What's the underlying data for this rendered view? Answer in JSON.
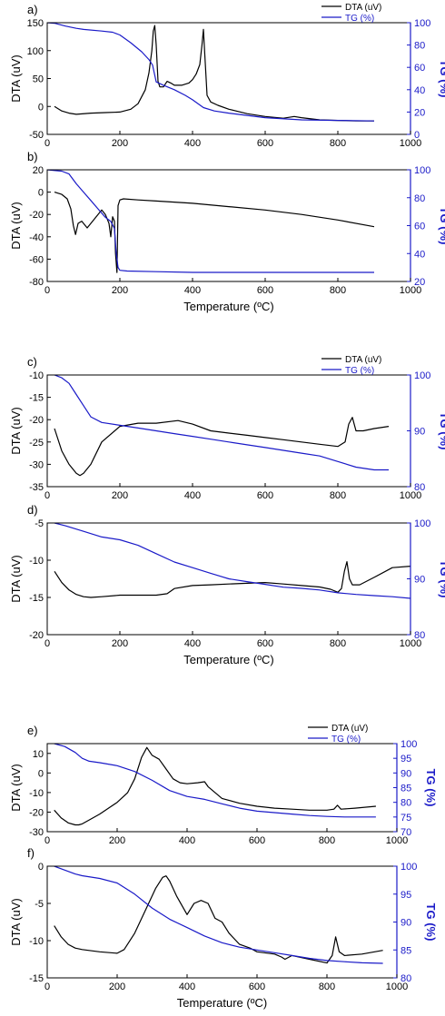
{
  "colors": {
    "dta": "#000000",
    "tg": "#1a1ac8"
  },
  "chart_data": [
    {
      "type": "line",
      "letter": "a)",
      "has_xlabel": false,
      "xlabel": "",
      "ylabel": "DTA (uV)",
      "y2label": "TG (%)",
      "xlim": [
        0,
        1000
      ],
      "ylim": [
        -50,
        150
      ],
      "y2lim": [
        0,
        100
      ],
      "xticks": [
        "0",
        "200",
        "400",
        "600",
        "800",
        "1000"
      ],
      "yticks": [
        "-50",
        "0",
        "50",
        "100",
        "150"
      ],
      "y2ticks": [
        "0",
        "20",
        "40",
        "60",
        "80",
        "100"
      ],
      "legend": [
        "DTA (uV)",
        "TG (%)"
      ],
      "series": [
        {
          "name": "DTA (uV)",
          "axis": "left",
          "x": [
            20,
            40,
            60,
            80,
            120,
            160,
            200,
            230,
            250,
            270,
            280,
            288,
            292,
            296,
            300,
            305,
            310,
            320,
            330,
            340,
            350,
            370,
            390,
            400,
            410,
            420,
            426,
            430,
            434,
            440,
            450,
            470,
            500,
            550,
            600,
            650,
            680,
            700,
            750,
            800,
            850,
            900
          ],
          "y": [
            0,
            -8,
            -12,
            -14,
            -12,
            -11,
            -10,
            -5,
            5,
            30,
            60,
            100,
            135,
            145,
            110,
            45,
            35,
            35,
            45,
            42,
            38,
            38,
            42,
            48,
            58,
            75,
            110,
            138,
            90,
            20,
            8,
            2,
            -5,
            -13,
            -18,
            -21,
            -18,
            -20,
            -24,
            -25,
            -26,
            -26
          ]
        },
        {
          "name": "TG (%)",
          "axis": "right",
          "x": [
            0,
            20,
            50,
            80,
            100,
            150,
            180,
            200,
            230,
            260,
            280,
            290,
            300,
            320,
            350,
            380,
            400,
            430,
            460,
            500,
            550,
            600,
            700,
            800,
            900
          ],
          "y": [
            100,
            99.5,
            97,
            95,
            94,
            92.5,
            91.5,
            89,
            82,
            74,
            67,
            62,
            47,
            44,
            40,
            35,
            31,
            24,
            21,
            19,
            17,
            15,
            13,
            12.5,
            12
          ]
        }
      ]
    },
    {
      "type": "line",
      "letter": "b)",
      "has_xlabel": true,
      "xlabel": "Temperature (ºC)",
      "ylabel": "DTA (uV)",
      "y2label": "TG (%)",
      "xlim": [
        0,
        1000
      ],
      "ylim": [
        -80,
        20
      ],
      "y2lim": [
        20,
        100
      ],
      "xticks": [
        "0",
        "200",
        "400",
        "600",
        "800",
        "1000"
      ],
      "yticks": [
        "-80",
        "-60",
        "-40",
        "-20",
        "0",
        "20"
      ],
      "y2ticks": [
        "20",
        "40",
        "60",
        "80",
        "100"
      ],
      "legend": [],
      "series": [
        {
          "name": "DTA (uV)",
          "axis": "left",
          "x": [
            20,
            40,
            55,
            65,
            72,
            78,
            85,
            95,
            110,
            130,
            150,
            160,
            170,
            175,
            180,
            185,
            188,
            192,
            195,
            200,
            210,
            250,
            300,
            400,
            500,
            600,
            700,
            800,
            900
          ],
          "y": [
            0,
            -2,
            -6,
            -15,
            -30,
            -38,
            -28,
            -26,
            -32,
            -24,
            -16,
            -20,
            -28,
            -40,
            -22,
            -26,
            -55,
            -72,
            -12,
            -7,
            -6,
            -7,
            -8,
            -10,
            -13,
            -16,
            -20,
            -25,
            -31
          ]
        },
        {
          "name": "TG (%)",
          "axis": "right",
          "x": [
            0,
            20,
            40,
            60,
            80,
            100,
            120,
            140,
            160,
            175,
            185,
            190,
            195,
            200,
            220,
            300,
            400,
            500,
            600,
            700,
            800,
            900
          ],
          "y": [
            100,
            99.5,
            99,
            97,
            90,
            84,
            78,
            72,
            66,
            63,
            58,
            40,
            30,
            28,
            27.5,
            27,
            26.5,
            26.5,
            26.5,
            26.5,
            26.5,
            26.5
          ]
        }
      ]
    },
    {
      "type": "line",
      "letter": "c)",
      "has_xlabel": false,
      "xlabel": "",
      "ylabel": "DTA (uV)",
      "y2label": "TG (%)",
      "xlim": [
        0,
        1000
      ],
      "ylim": [
        -35,
        -10
      ],
      "y2lim": [
        80,
        100
      ],
      "xticks": [
        "0",
        "200",
        "400",
        "600",
        "800",
        "1000"
      ],
      "yticks": [
        "-35",
        "-30",
        "-25",
        "-20",
        "-15",
        "-10"
      ],
      "y2ticks": [
        "80",
        "90",
        "100"
      ],
      "legend": [
        "DTA (uV)",
        "TG (%)"
      ],
      "series": [
        {
          "name": "DTA (uV)",
          "axis": "left",
          "x": [
            20,
            40,
            60,
            80,
            90,
            100,
            120,
            150,
            200,
            250,
            300,
            360,
            400,
            450,
            500,
            550,
            600,
            650,
            700,
            750,
            800,
            820,
            830,
            840,
            850,
            870,
            900,
            940
          ],
          "y": [
            -22,
            -27,
            -30,
            -32,
            -32.5,
            -32,
            -30,
            -25,
            -21.5,
            -20.8,
            -20.8,
            -20.2,
            -21,
            -22.5,
            -23,
            -23.5,
            -24,
            -24.5,
            -25,
            -25.5,
            -26,
            -25,
            -21,
            -19.5,
            -22.5,
            -22.5,
            -22,
            -21.5
          ]
        },
        {
          "name": "TG (%)",
          "axis": "right",
          "x": [
            20,
            40,
            60,
            80,
            100,
            120,
            150,
            200,
            250,
            300,
            350,
            400,
            450,
            500,
            550,
            600,
            650,
            700,
            750,
            800,
            850,
            900,
            940
          ],
          "y": [
            100,
            99.5,
            98.5,
            96.5,
            94.5,
            92.5,
            91.5,
            91,
            90.5,
            90,
            89.5,
            89,
            88.5,
            88,
            87.5,
            87,
            86.5,
            86,
            85.5,
            84.5,
            83.5,
            83,
            83
          ]
        }
      ]
    },
    {
      "type": "line",
      "letter": "d)",
      "has_xlabel": true,
      "xlabel": "Temperature (ºC)",
      "ylabel": "DTA (uV)",
      "y2label": "TG (%)",
      "xlim": [
        0,
        1000
      ],
      "ylim": [
        -20,
        -5
      ],
      "y2lim": [
        80,
        100
      ],
      "xticks": [
        "0",
        "200",
        "400",
        "600",
        "800",
        "1000"
      ],
      "yticks": [
        "-20",
        "-15",
        "-10",
        "-5"
      ],
      "y2ticks": [
        "80",
        "90",
        "100"
      ],
      "legend": [],
      "series": [
        {
          "name": "DTA (uV)",
          "axis": "left",
          "x": [
            20,
            40,
            60,
            80,
            100,
            120,
            150,
            200,
            250,
            300,
            330,
            350,
            400,
            450,
            500,
            550,
            600,
            650,
            700,
            750,
            780,
            800,
            810,
            818,
            825,
            832,
            840,
            860,
            900,
            950,
            1000
          ],
          "y": [
            -11.5,
            -13,
            -14,
            -14.6,
            -14.9,
            -15,
            -14.9,
            -14.7,
            -14.7,
            -14.7,
            -14.5,
            -13.8,
            -13.4,
            -13.3,
            -13.2,
            -13.1,
            -13,
            -13.2,
            -13.4,
            -13.6,
            -13.9,
            -14.3,
            -13.8,
            -11.5,
            -10.2,
            -12.5,
            -13.3,
            -13.3,
            -12.3,
            -11,
            -10.8
          ]
        },
        {
          "name": "TG (%)",
          "axis": "right",
          "x": [
            20,
            50,
            100,
            150,
            200,
            250,
            300,
            350,
            400,
            450,
            500,
            550,
            600,
            650,
            700,
            750,
            800,
            850,
            900,
            950,
            1000
          ],
          "y": [
            100,
            99.5,
            98.5,
            97.5,
            97,
            96,
            94.5,
            93,
            92,
            91,
            90,
            89.5,
            89,
            88.5,
            88.3,
            88,
            87.5,
            87.2,
            87,
            86.8,
            86.5
          ]
        }
      ]
    },
    {
      "type": "line",
      "letter": "e)",
      "has_xlabel": false,
      "xlabel": "",
      "ylabel": "DTA (uV)",
      "y2label": "TG (%)",
      "xlim": [
        0,
        1000
      ],
      "ylim": [
        -30,
        15
      ],
      "y2lim": [
        70,
        100
      ],
      "xticks": [
        "0",
        "200",
        "400",
        "600",
        "800",
        "1000"
      ],
      "yticks": [
        "-30",
        "-20",
        "-10",
        "0",
        "10"
      ],
      "y2ticks": [
        "70",
        "75",
        "80",
        "85",
        "90",
        "95",
        "100"
      ],
      "legend": [
        "DTA (uV)",
        "TG (%)"
      ],
      "series": [
        {
          "name": "DTA (uV)",
          "axis": "left",
          "x": [
            20,
            40,
            60,
            80,
            90,
            100,
            120,
            150,
            200,
            230,
            250,
            270,
            285,
            300,
            320,
            340,
            360,
            380,
            400,
            430,
            450,
            460,
            480,
            500,
            550,
            600,
            650,
            700,
            750,
            800,
            820,
            830,
            840,
            880,
            940
          ],
          "y": [
            -19,
            -23,
            -25.5,
            -26.5,
            -26.5,
            -26,
            -24,
            -21,
            -15,
            -10,
            -3,
            8,
            13,
            9,
            7,
            2,
            -3,
            -5,
            -5.5,
            -5,
            -4.5,
            -7,
            -10,
            -13,
            -15.5,
            -17,
            -18,
            -18.5,
            -19,
            -19,
            -18.5,
            -16.5,
            -18.5,
            -18,
            -17
          ]
        },
        {
          "name": "TG (%)",
          "axis": "right",
          "x": [
            20,
            50,
            80,
            100,
            120,
            150,
            200,
            250,
            300,
            350,
            400,
            450,
            500,
            550,
            600,
            650,
            700,
            750,
            800,
            850,
            900,
            940
          ],
          "y": [
            100,
            99,
            97,
            95,
            94,
            93.5,
            92.5,
            90.5,
            87.5,
            84,
            82,
            81,
            79.5,
            78,
            77,
            76.5,
            76,
            75.5,
            75.2,
            75,
            75,
            75
          ]
        }
      ]
    },
    {
      "type": "line",
      "letter": "f)",
      "has_xlabel": true,
      "xlabel": "Temperature (ºC)",
      "ylabel": "DTA (uV)",
      "y2label": "TG (%)",
      "xlim": [
        0,
        1000
      ],
      "ylim": [
        -15,
        0
      ],
      "y2lim": [
        80,
        100
      ],
      "xticks": [
        "0",
        "200",
        "400",
        "600",
        "800",
        "1000"
      ],
      "yticks": [
        "-15",
        "-10",
        "-5",
        "0"
      ],
      "y2ticks": [
        "80",
        "85",
        "90",
        "95",
        "100"
      ],
      "legend": [],
      "series": [
        {
          "name": "DTA (uV)",
          "axis": "left",
          "x": [
            20,
            40,
            60,
            80,
            100,
            150,
            200,
            220,
            250,
            280,
            310,
            330,
            340,
            350,
            370,
            400,
            420,
            440,
            460,
            480,
            500,
            520,
            550,
            580,
            600,
            650,
            670,
            680,
            700,
            750,
            800,
            815,
            825,
            835,
            850,
            900,
            960
          ],
          "y": [
            -8,
            -9.5,
            -10.5,
            -11,
            -11.2,
            -11.5,
            -11.7,
            -11.2,
            -9,
            -6,
            -3,
            -1.5,
            -1.3,
            -2,
            -4,
            -6.5,
            -5,
            -4.6,
            -5,
            -7,
            -7.5,
            -9,
            -10.5,
            -11,
            -11.5,
            -11.8,
            -12.2,
            -12.5,
            -12,
            -12.5,
            -13,
            -12,
            -9.5,
            -11.5,
            -12,
            -11.8,
            -11.3
          ]
        },
        {
          "name": "TG (%)",
          "axis": "right",
          "x": [
            20,
            50,
            80,
            100,
            150,
            200,
            250,
            300,
            350,
            400,
            450,
            500,
            550,
            600,
            650,
            700,
            750,
            800,
            850,
            900,
            960
          ],
          "y": [
            100,
            99.3,
            98.6,
            98.3,
            97.8,
            97,
            95,
            92.5,
            90.5,
            89,
            87.5,
            86.3,
            85.5,
            85,
            84.5,
            84,
            83.5,
            83.1,
            82.9,
            82.7,
            82.6
          ]
        }
      ]
    }
  ]
}
